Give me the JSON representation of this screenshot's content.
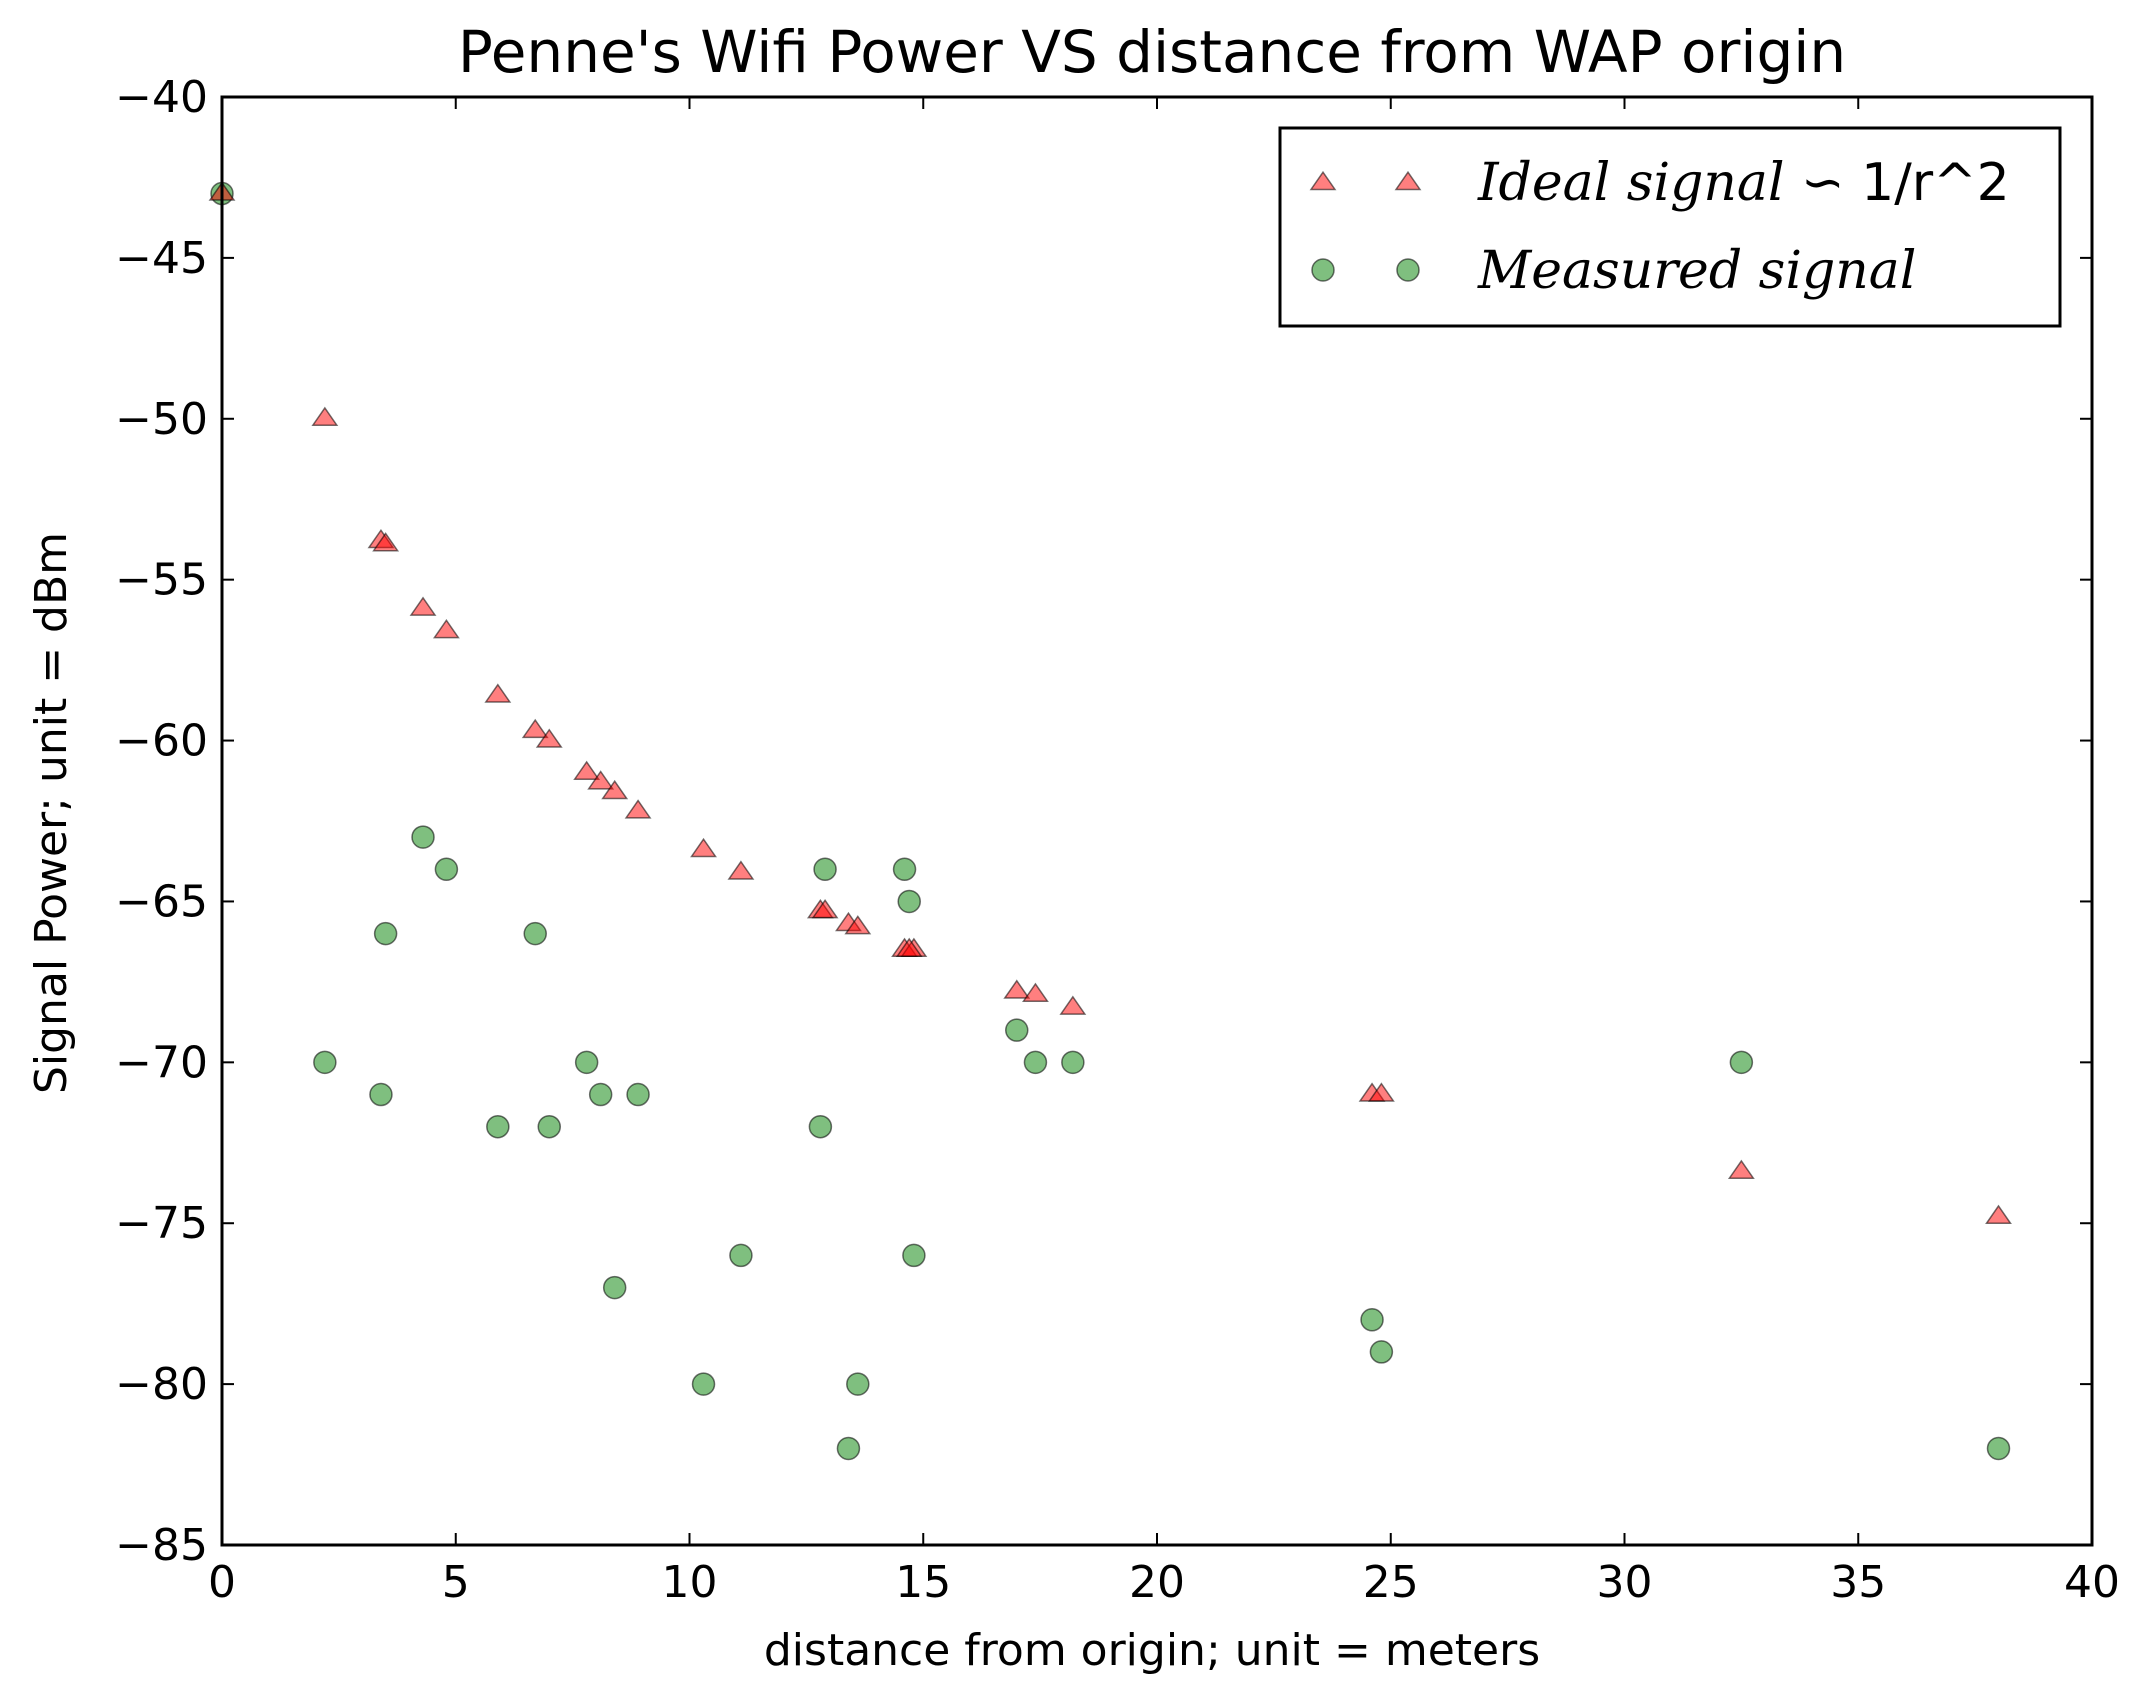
{
  "chart_data": {
    "type": "scatter",
    "title": "Penne's Wifi Power VS distance from WAP origin",
    "xlabel": "distance from origin; unit = meters",
    "ylabel": "Signal Power; unit = dBm",
    "xlim": [
      0,
      40
    ],
    "ylim": [
      -85,
      -40
    ],
    "xticks": [
      "0",
      "5",
      "10",
      "15",
      "20",
      "25",
      "30",
      "35",
      "40"
    ],
    "yticks": [
      "−40",
      "−45",
      "−50",
      "−55",
      "−60",
      "−65",
      "−70",
      "−75",
      "−80",
      "−85"
    ],
    "grid": false,
    "legend_position": "top-right",
    "series": [
      {
        "name_italic": "Ideal signal",
        "name_upright": " ∽ 1/r^2",
        "marker": "triangle",
        "color": "#ff0000",
        "points": [
          [
            0,
            -43
          ],
          [
            2.2,
            -50
          ],
          [
            3.4,
            -53.8
          ],
          [
            3.5,
            -53.9
          ],
          [
            4.3,
            -55.9
          ],
          [
            4.8,
            -56.6
          ],
          [
            5.9,
            -58.6
          ],
          [
            6.7,
            -59.7
          ],
          [
            7.0,
            -60.0
          ],
          [
            7.8,
            -61.0
          ],
          [
            8.1,
            -61.3
          ],
          [
            8.4,
            -61.6
          ],
          [
            8.9,
            -62.2
          ],
          [
            10.3,
            -63.4
          ],
          [
            11.1,
            -64.1
          ],
          [
            12.8,
            -65.3
          ],
          [
            12.9,
            -65.3
          ],
          [
            13.4,
            -65.7
          ],
          [
            13.6,
            -65.8
          ],
          [
            14.6,
            -66.5
          ],
          [
            14.8,
            -66.5
          ],
          [
            14.7,
            -66.5
          ],
          [
            17.0,
            -67.8
          ],
          [
            17.4,
            -67.9
          ],
          [
            18.2,
            -68.3
          ],
          [
            24.6,
            -71.0
          ],
          [
            24.8,
            -71.0
          ],
          [
            32.5,
            -73.4
          ],
          [
            38.0,
            -74.8
          ]
        ]
      },
      {
        "name_italic": "Measured signal",
        "name_upright": "",
        "marker": "circle",
        "color": "#008000",
        "points": [
          [
            0,
            -43
          ],
          [
            2.2,
            -70
          ],
          [
            3.4,
            -71
          ],
          [
            3.5,
            -66
          ],
          [
            4.3,
            -63
          ],
          [
            4.8,
            -64
          ],
          [
            5.9,
            -72
          ],
          [
            6.7,
            -66
          ],
          [
            7.0,
            -72
          ],
          [
            7.8,
            -70
          ],
          [
            8.1,
            -71
          ],
          [
            8.4,
            -77
          ],
          [
            8.9,
            -71
          ],
          [
            10.3,
            -80
          ],
          [
            11.1,
            -76
          ],
          [
            12.8,
            -72
          ],
          [
            12.9,
            -64
          ],
          [
            13.4,
            -82
          ],
          [
            13.6,
            -80
          ],
          [
            14.6,
            -64
          ],
          [
            14.7,
            -65
          ],
          [
            14.8,
            -76
          ],
          [
            17.0,
            -69
          ],
          [
            17.4,
            -70
          ],
          [
            18.2,
            -70
          ],
          [
            24.6,
            -78
          ],
          [
            24.8,
            -79
          ],
          [
            32.5,
            -70
          ],
          [
            38.0,
            -82
          ]
        ]
      }
    ]
  }
}
